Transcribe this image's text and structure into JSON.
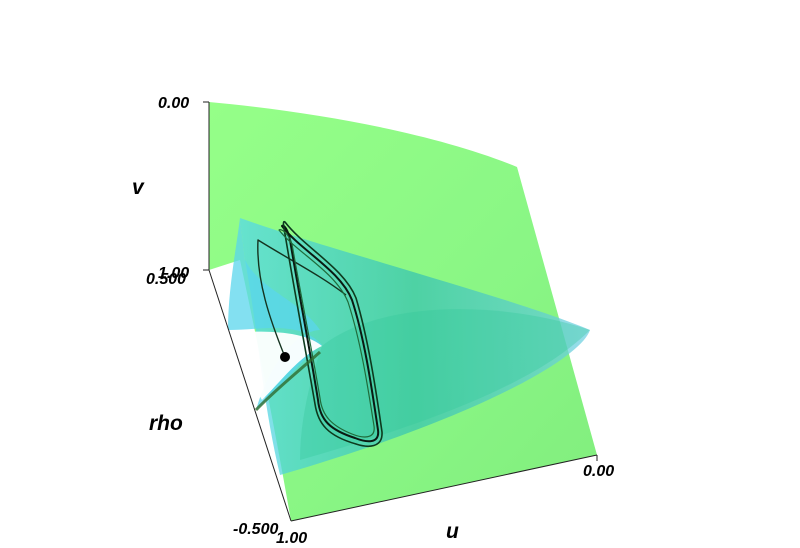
{
  "chart_data": {
    "type": "3d-surface-trajectory",
    "axes": {
      "v": {
        "label": "v",
        "range": [
          1.0,
          0.0
        ],
        "ticks": [
          "0.00",
          "1.00"
        ]
      },
      "rho": {
        "label": "rho",
        "range": [
          0.5,
          -0.5
        ],
        "ticks": [
          "0.500",
          "-0.500"
        ]
      },
      "u": {
        "label": "u",
        "range": [
          1.0,
          0.0
        ],
        "ticks": [
          "1.00",
          "0.00"
        ]
      }
    },
    "surfaces": [
      {
        "name": "",
        "color": "#7cf55f",
        "opacity": 0.85
      },
      {
        "name": "",
        "color": "#3fc8d8",
        "opacity": 0.7
      }
    ],
    "trajectory": {
      "color": "#0a1a12",
      "marker_color": "#000000"
    },
    "grid": false,
    "legend": "none"
  }
}
